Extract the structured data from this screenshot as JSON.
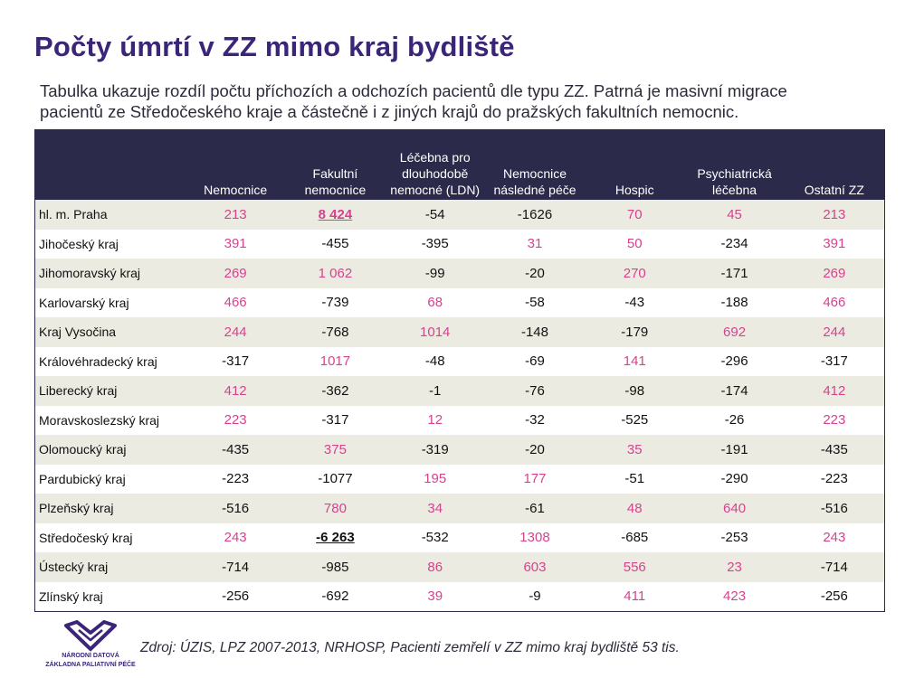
{
  "title": "Počty úmrtí v ZZ mimo kraj bydliště",
  "subtitle": "Tabulka ukazuje rozdíl počtu příchozích a odchozích pacientů dle typu ZZ. Patrná je masivní migrace pacientů ze Středočeského kraje a částečně i z jiných krajů do pražských fakultních nemocnic.",
  "table": {
    "headers": [
      "",
      "Nemocnice",
      "Fakultní nemocnice",
      "Léčebna pro dlouhodobě nemocné (LDN)",
      "Nemocnice následné péče",
      "Hospic",
      "Psychiatrická léčebna",
      "Ostatní ZZ"
    ],
    "rows": [
      {
        "region": "hl. m. Praha",
        "cells": [
          "213",
          "8 424",
          "-54",
          "-1626",
          "70",
          "45",
          "213"
        ],
        "highlight": 1
      },
      {
        "region": "Jihočeský kraj",
        "cells": [
          "391",
          "-455",
          "-395",
          "31",
          "50",
          "-234",
          "391"
        ]
      },
      {
        "region": "Jihomoravský kraj",
        "cells": [
          "269",
          "1 062",
          "-99",
          "-20",
          "270",
          "-171",
          "269"
        ]
      },
      {
        "region": "Karlovarský kraj",
        "cells": [
          "466",
          "-739",
          "68",
          "-58",
          "-43",
          "-188",
          "466"
        ]
      },
      {
        "region": "Kraj Vysočina",
        "cells": [
          "244",
          "-768",
          "1014",
          "-148",
          "-179",
          "692",
          "244"
        ]
      },
      {
        "region": "Královéhradecký kraj",
        "cells": [
          "-317",
          "1017",
          "-48",
          "-69",
          "141",
          "-296",
          "-317"
        ]
      },
      {
        "region": "Liberecký kraj",
        "cells": [
          "412",
          "-362",
          "-1",
          "-76",
          "-98",
          "-174",
          "412"
        ]
      },
      {
        "region": "Moravskoslezský kraj",
        "cells": [
          "223",
          "-317",
          "12",
          "-32",
          "-525",
          "-26",
          "223"
        ]
      },
      {
        "region": "Olomoucký kraj",
        "cells": [
          "-435",
          "375",
          "-319",
          "-20",
          "35",
          "-191",
          "-435"
        ]
      },
      {
        "region": "Pardubický kraj",
        "cells": [
          "-223",
          "-1077",
          "195",
          "177",
          "-51",
          "-290",
          "-223"
        ]
      },
      {
        "region": "Plzeňský kraj",
        "cells": [
          "-516",
          "780",
          "34",
          "-61",
          "48",
          "640",
          "-516"
        ]
      },
      {
        "region": "Středočeský kraj",
        "cells": [
          "243",
          "-6 263",
          "-532",
          "1308",
          "-685",
          "-253",
          "243"
        ],
        "highlight": 1
      },
      {
        "region": "Ústecký kraj",
        "cells": [
          "-714",
          "-985",
          "86",
          "603",
          "556",
          "23",
          "-714"
        ]
      },
      {
        "region": "Zlínský kraj",
        "cells": [
          "-256",
          "-692",
          "39",
          "-9",
          "411",
          "423",
          "-256"
        ]
      }
    ]
  },
  "logo": {
    "line1": "NÁRODNÍ DATOVÁ",
    "line2": "ZÁKLADNA PALIATIVNÍ PÉČE",
    "color": "#3b2578"
  },
  "source": "Zdroj: ÚZIS, LPZ 2007-2013, NRHOSP, Pacienti zemřelí v ZZ mimo kraj bydliště 53 tis.",
  "colors": {
    "title": "#3b2578",
    "header_bg": "#2c2a4a",
    "positive": "#d6428f",
    "negative": "#111111",
    "row_band": "#ecebe1"
  }
}
